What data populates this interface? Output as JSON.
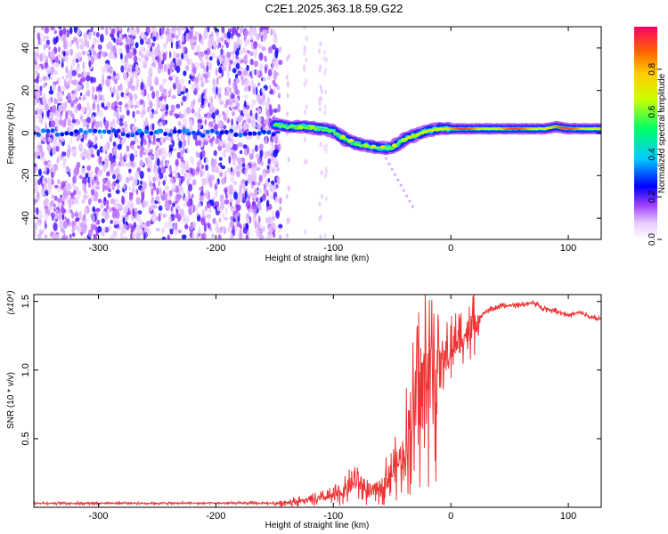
{
  "title": "C2E1.2025.363.18.59.G22",
  "chart_data": [
    {
      "type": "heatmap",
      "xlabel": "Height of straight line (km)",
      "ylabel": "Frequency (Hz)",
      "xlim": [
        -355,
        128
      ],
      "ylim": [
        -50,
        50
      ],
      "x_ticks": [
        -300,
        -200,
        -100,
        0,
        100
      ],
      "y_ticks": [
        -40,
        -20,
        0,
        20,
        40
      ],
      "colorbar": {
        "label": "Normalized spectral amplitude",
        "range": [
          0,
          1
        ],
        "ticks": [
          0.0,
          0.2,
          0.4,
          0.6,
          0.8
        ]
      },
      "noise_region_x": [
        -355,
        -145
      ],
      "signal_track": {
        "x": [
          -150,
          -140,
          -125,
          -110,
          -100,
          -90,
          -80,
          -70,
          -60,
          -50,
          -45,
          -40,
          -30,
          -20,
          -10,
          0,
          20,
          40,
          60,
          80,
          90,
          100,
          128
        ],
        "freq": [
          4,
          3,
          3,
          2,
          1,
          -3,
          -5,
          -6,
          -7,
          -7,
          -5,
          -3,
          -1,
          1,
          2,
          2,
          2,
          2,
          2,
          2,
          3,
          2,
          2
        ]
      }
    },
    {
      "type": "line",
      "xlabel": "Height of straight line (km)",
      "ylabel": "SNR (10 * v/v)",
      "y_multiplier": "(x10⁴)",
      "xlim": [
        -355,
        128
      ],
      "ylim": [
        0,
        15500
      ],
      "x_ticks": [
        -300,
        -200,
        -100,
        0,
        100
      ],
      "y_ticks": [
        0.5,
        1.0,
        1.5
      ],
      "series_color": "#ee3333",
      "series": [
        {
          "name": "SNR",
          "x": [
            -355,
            -300,
            -250,
            -200,
            -150,
            -120,
            -100,
            -90,
            -80,
            -70,
            -60,
            -50,
            -40,
            -35,
            -30,
            -25,
            -20,
            -15,
            -10,
            -5,
            0,
            5,
            10,
            20,
            30,
            40,
            50,
            60,
            70,
            80,
            90,
            100,
            110,
            120,
            128
          ],
          "y": [
            300,
            300,
            300,
            300,
            300,
            500,
            800,
            1200,
            2000,
            1000,
            1500,
            2500,
            4000,
            6000,
            7500,
            8500,
            9500,
            10000,
            10500,
            11000,
            11500,
            12000,
            12500,
            13500,
            14300,
            14600,
            14700,
            14800,
            14900,
            14500,
            14300,
            14000,
            14200,
            13800,
            13700
          ]
        }
      ]
    }
  ]
}
